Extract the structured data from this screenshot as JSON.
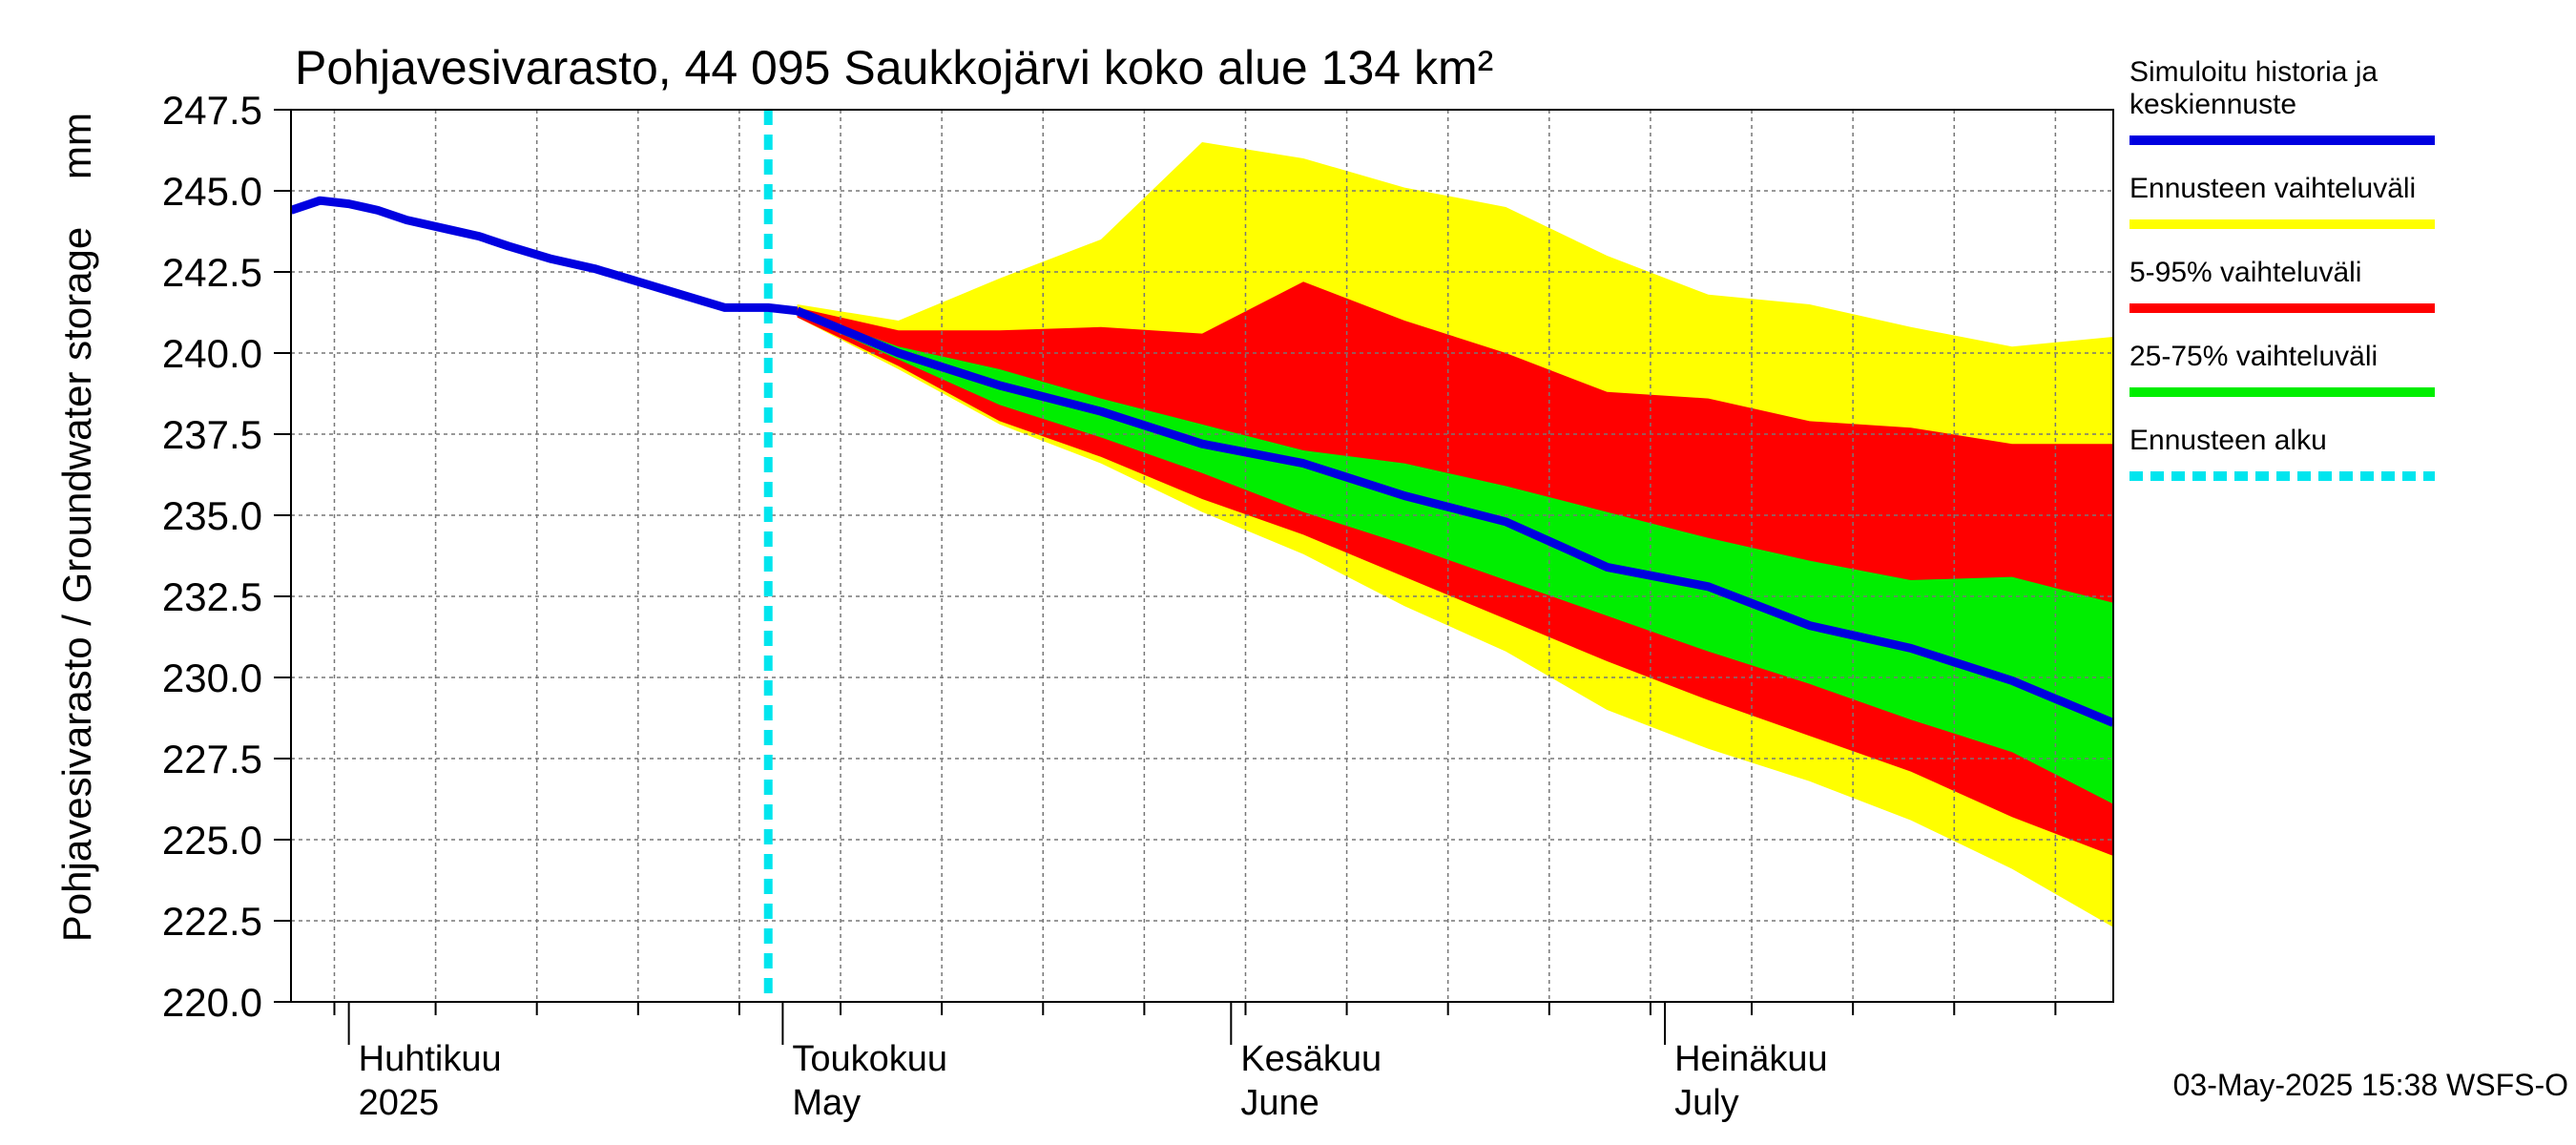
{
  "chart_data": {
    "type": "area",
    "title": "Pohjavesivarasto, 44 095 Saukkojärvi koko alue 134 km²",
    "ylabel": "Pohjavesivarasto / Groundwater storage",
    "yunit": "mm",
    "ylim": [
      220.0,
      247.5
    ],
    "yticks": [
      "220.0",
      "222.5",
      "225.0",
      "227.5",
      "230.0",
      "232.5",
      "235.0",
      "237.5",
      "240.0",
      "242.5",
      "245.0",
      "247.5"
    ],
    "xlim": [
      "2025-03-28",
      "2025-08-01"
    ],
    "month_labels": [
      {
        "date": "2025-04-01",
        "line1": "Huhtikuu",
        "line2": "2025"
      },
      {
        "date": "2025-05-01",
        "line1": "Toukokuu",
        "line2": "May"
      },
      {
        "date": "2025-06-01",
        "line1": "Kesäkuu",
        "line2": "June"
      },
      {
        "date": "2025-07-01",
        "line1": "Heinäkuu",
        "line2": "July"
      }
    ],
    "forecast_start": "2025-04-30",
    "grid": true,
    "legend_position": "right",
    "legend": [
      {
        "label_lines": [
          "Simuloitu historia ja",
          "keskiennuste"
        ],
        "color": "#0000e0",
        "style": "solid"
      },
      {
        "label_lines": [
          "Ennusteen vaihteluväli"
        ],
        "color": "#ffff00",
        "style": "solid"
      },
      {
        "label_lines": [
          "5-95% vaihteluväli"
        ],
        "color": "#ff0000",
        "style": "solid"
      },
      {
        "label_lines": [
          "25-75% vaihteluväli"
        ],
        "color": "#00ee00",
        "style": "solid"
      },
      {
        "label_lines": [
          "Ennusteen alku"
        ],
        "color": "#00e5ee",
        "style": "dashed"
      }
    ],
    "colors": {
      "history": "#0000e0",
      "range": "#ffff00",
      "p5_95": "#ff0000",
      "p25_75": "#00ee00",
      "start": "#00e5ee"
    },
    "history": {
      "x": [
        "2025-03-28",
        "2025-03-30",
        "2025-04-01",
        "2025-04-03",
        "2025-04-05",
        "2025-04-08",
        "2025-04-10",
        "2025-04-12",
        "2025-04-15",
        "2025-04-18",
        "2025-04-21",
        "2025-04-24",
        "2025-04-27",
        "2025-04-30",
        "2025-05-02"
      ],
      "y": [
        244.4,
        244.7,
        244.6,
        244.4,
        244.1,
        243.8,
        243.6,
        243.3,
        242.9,
        242.6,
        242.2,
        241.8,
        241.4,
        241.4,
        241.3
      ]
    },
    "forecast": {
      "x": [
        "2025-05-02",
        "2025-05-09",
        "2025-05-16",
        "2025-05-23",
        "2025-05-30",
        "2025-06-06",
        "2025-06-13",
        "2025-06-20",
        "2025-06-27",
        "2025-07-04",
        "2025-07-11",
        "2025-07-18",
        "2025-07-25",
        "2025-08-01"
      ],
      "max": [
        241.5,
        241.0,
        242.3,
        243.5,
        246.5,
        246.0,
        245.1,
        244.5,
        243.0,
        241.8,
        241.5,
        240.8,
        240.2,
        240.5
      ],
      "p95": [
        241.4,
        240.7,
        240.7,
        240.8,
        240.6,
        242.2,
        241.0,
        240.0,
        238.8,
        238.6,
        237.9,
        237.7,
        237.2,
        237.2
      ],
      "p75": [
        241.3,
        240.2,
        239.5,
        238.6,
        237.8,
        237.0,
        236.6,
        235.9,
        235.1,
        234.3,
        233.6,
        233.0,
        233.1,
        232.3
      ],
      "median": [
        241.3,
        240.0,
        239.0,
        238.2,
        237.2,
        236.6,
        235.6,
        234.8,
        233.4,
        232.8,
        231.6,
        230.9,
        229.9,
        228.6
      ],
      "p25": [
        241.2,
        239.8,
        238.4,
        237.4,
        236.3,
        235.1,
        234.1,
        233.0,
        231.9,
        230.8,
        229.8,
        228.7,
        227.7,
        226.1
      ],
      "p5": [
        241.1,
        239.6,
        237.9,
        236.8,
        235.5,
        234.4,
        233.1,
        231.8,
        230.5,
        229.3,
        228.2,
        227.1,
        225.7,
        224.5
      ],
      "min": [
        241.1,
        239.5,
        237.8,
        236.6,
        235.1,
        233.8,
        232.2,
        230.8,
        229.0,
        227.8,
        226.8,
        225.6,
        224.1,
        222.3
      ]
    }
  },
  "footer": {
    "timestamp": "03-May-2025 15:38 WSFS-O"
  }
}
